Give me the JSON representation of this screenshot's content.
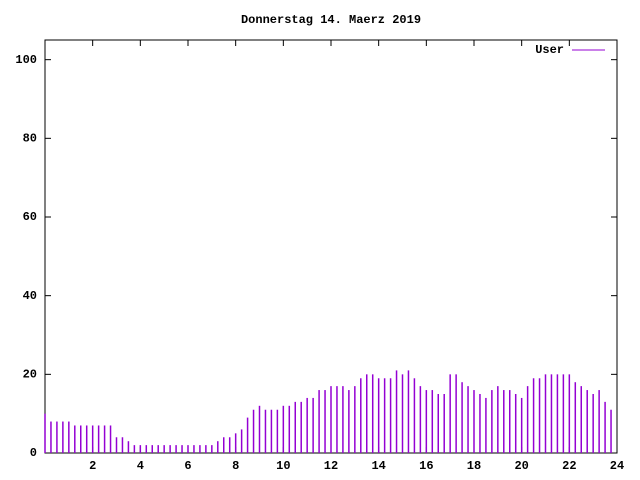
{
  "chart_data": {
    "type": "impulse",
    "title": "Donnerstag 14. Maerz 2019",
    "x": [
      0,
      0.25,
      0.5,
      0.75,
      1,
      1.25,
      1.5,
      1.75,
      2,
      2.25,
      2.5,
      2.75,
      3,
      3.25,
      3.5,
      3.75,
      4,
      4.25,
      4.5,
      4.75,
      5,
      5.25,
      5.5,
      5.75,
      6,
      6.25,
      6.5,
      6.75,
      7,
      7.25,
      7.5,
      7.75,
      8,
      8.25,
      8.5,
      8.75,
      9,
      9.25,
      9.5,
      9.75,
      10,
      10.25,
      10.5,
      10.75,
      11,
      11.25,
      11.5,
      11.75,
      12,
      12.25,
      12.5,
      12.75,
      13,
      13.25,
      13.5,
      13.75,
      14,
      14.25,
      14.5,
      14.75,
      15,
      15.25,
      15.5,
      15.75,
      16,
      16.25,
      16.5,
      16.75,
      17,
      17.25,
      17.5,
      17.75,
      18,
      18.25,
      18.5,
      18.75,
      19,
      19.25,
      19.5,
      19.75,
      20,
      20.25,
      20.5,
      20.75,
      21,
      21.25,
      21.5,
      21.75,
      22,
      22.25,
      22.5,
      22.75,
      23,
      23.25,
      23.5,
      23.75
    ],
    "series": [
      {
        "name": "User",
        "color": "#9400d3",
        "values": [
          10,
          8,
          8,
          8,
          8,
          7,
          7,
          7,
          7,
          7,
          7,
          7,
          4,
          4,
          3,
          2,
          2,
          2,
          2,
          2,
          2,
          2,
          2,
          2,
          2,
          2,
          2,
          2,
          2,
          3,
          4,
          4,
          5,
          6,
          9,
          11,
          12,
          11,
          11,
          11,
          12,
          12,
          13,
          13,
          14,
          14,
          16,
          16,
          17,
          17,
          17,
          16,
          17,
          19,
          20,
          20,
          19,
          19,
          19,
          21,
          20,
          21,
          19,
          17,
          16,
          16,
          15,
          15,
          20,
          20,
          18,
          17,
          16,
          15,
          14,
          16,
          17,
          16,
          16,
          15,
          14,
          17,
          19,
          19,
          20,
          20,
          20,
          20,
          20,
          18,
          17,
          16,
          15,
          16,
          13,
          11
        ]
      }
    ],
    "xlim": [
      0,
      24
    ],
    "xticks": [
      2,
      4,
      6,
      8,
      10,
      12,
      14,
      16,
      18,
      20,
      22,
      24
    ],
    "ylim": [
      0,
      105
    ],
    "yticks": [
      0,
      20,
      40,
      60,
      80,
      100
    ]
  }
}
